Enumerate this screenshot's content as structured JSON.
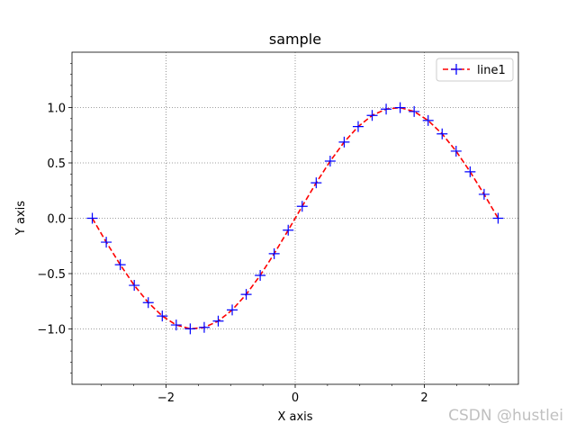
{
  "chart_data": {
    "type": "line",
    "title": "sample",
    "xlabel": "X axis",
    "ylabel": "Y axis",
    "xlim": [
      -3.4558,
      3.4558
    ],
    "ylim": [
      -1.5,
      1.5
    ],
    "x_ticks": [
      -2,
      0,
      2
    ],
    "x_tick_labels": [
      "−2",
      "0",
      "2"
    ],
    "y_ticks": [
      -1.0,
      -0.5,
      0.0,
      0.5,
      1.0
    ],
    "y_tick_labels": [
      "−1.0",
      "−0.5",
      "0.0",
      "0.5",
      "1.0"
    ],
    "grid": true,
    "legend_position": "top-right",
    "series": [
      {
        "name": "line1",
        "line_color": "#ff0000",
        "line_style": "dashed",
        "marker": "+",
        "marker_color": "#0000ff",
        "x": [
          -3.1416,
          -2.925,
          -2.7083,
          -2.4917,
          -2.275,
          -2.0584,
          -1.8417,
          -1.6251,
          -1.4084,
          -1.1918,
          -0.9751,
          -0.7585,
          -0.5418,
          -0.3252,
          -0.1083,
          0.1083,
          0.3252,
          0.5418,
          0.7585,
          0.9751,
          1.1918,
          1.4084,
          1.6251,
          1.8417,
          2.0584,
          2.275,
          2.4917,
          2.7083,
          2.925,
          3.1416
        ],
        "y": [
          0.0,
          -0.216,
          -0.42,
          -0.606,
          -0.762,
          -0.883,
          -0.964,
          -0.999,
          -0.986,
          -0.929,
          -0.828,
          -0.688,
          -0.516,
          -0.32,
          -0.108,
          0.108,
          0.32,
          0.516,
          0.688,
          0.828,
          0.929,
          0.986,
          0.999,
          0.964,
          0.883,
          0.762,
          0.606,
          0.42,
          0.216,
          0.0
        ]
      }
    ]
  },
  "watermark": "CSDN @hustlei"
}
